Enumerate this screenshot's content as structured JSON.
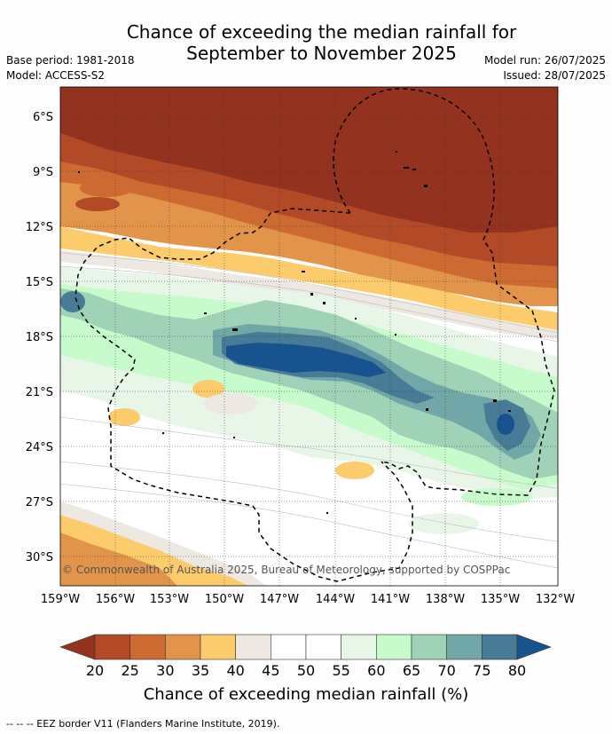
{
  "title": {
    "line1": "Chance of exceeding the median rainfall for",
    "line2": "September to November 2025"
  },
  "meta": {
    "base_period": "Base period: 1981-2018",
    "model": "Model: ACCESS-S2",
    "model_run": "Model run: 26/07/2025",
    "issued": "Issued: 28/07/2025"
  },
  "map": {
    "lat_labels": [
      "6°S",
      "9°S",
      "12°S",
      "15°S",
      "18°S",
      "21°S",
      "24°S",
      "27°S",
      "30°S"
    ],
    "lon_labels": [
      "159°W",
      "156°W",
      "153°W",
      "150°W",
      "147°W",
      "144°W",
      "141°W",
      "138°W",
      "135°W",
      "132°W"
    ],
    "copyright": "© Commonwealth of Australia 2025, Bureau of Meteorology, supported by COSPPac",
    "ocean_color": "#ffffff",
    "border_style": "dashed"
  },
  "colorbar": {
    "tick_labels": [
      "20",
      "25",
      "30",
      "35",
      "40",
      "45",
      "50",
      "55",
      "60",
      "65",
      "70",
      "75",
      "80"
    ],
    "low_extend_color": "#93331f",
    "high_extend_color": "#17538f",
    "colors": [
      "#b24a28",
      "#cc6a32",
      "#e2944a",
      "#fccb6c",
      "#ede8e2",
      "#ffffff",
      "#ffffff",
      "#e8f6e8",
      "#c8fbcb",
      "#9fd2b7",
      "#72a7a8",
      "#487c96"
    ],
    "title": "Chance of exceeding median rainfall (%)"
  },
  "footer": "--  --  -- EEZ border V11 (Flanders Marine Institute, 2019)."
}
